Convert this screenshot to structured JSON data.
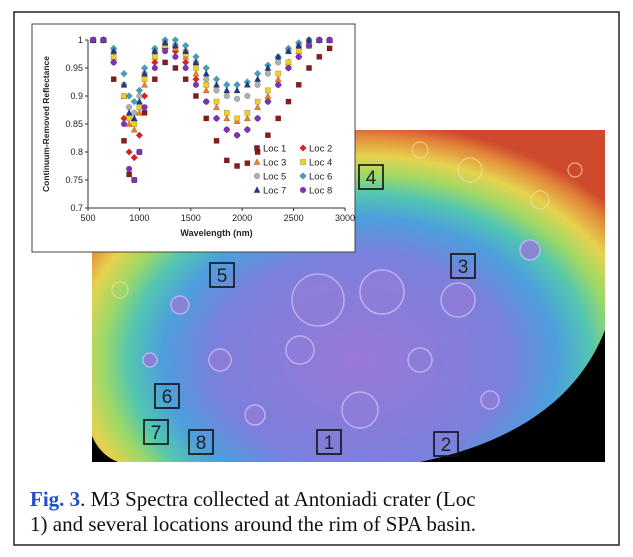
{
  "chart_data": {
    "type": "scatter",
    "xlabel": "Wavelength (nm)",
    "ylabel": "Continuum-Removed Reflectance",
    "xlim": [
      500,
      3000
    ],
    "xticks": [
      500,
      1000,
      1500,
      2000,
      2500,
      3000
    ],
    "ylim": [
      0.7,
      1
    ],
    "yticks": [
      0.7,
      0.75,
      0.8,
      0.85,
      0.9,
      0.95,
      1
    ],
    "legend": "lower right",
    "x": [
      550,
      650,
      750,
      850,
      900,
      950,
      1000,
      1050,
      1150,
      1250,
      1350,
      1450,
      1550,
      1650,
      1750,
      1850,
      1950,
      2050,
      2150,
      2250,
      2350,
      2450,
      2550,
      2650,
      2750,
      2850
    ],
    "series": [
      {
        "name": "Loc 1",
        "color": "#8b1a1a",
        "marker": "square",
        "values": [
          1,
          1,
          0.93,
          0.82,
          0.76,
          0.75,
          0.8,
          0.87,
          0.93,
          0.96,
          0.95,
          0.93,
          0.9,
          0.86,
          0.82,
          0.785,
          0.775,
          0.78,
          0.8,
          0.83,
          0.86,
          0.89,
          0.92,
          0.95,
          0.97,
          0.985
        ]
      },
      {
        "name": "Loc 2",
        "color": "#e02020",
        "marker": "diamond",
        "values": [
          1,
          1,
          0.96,
          0.86,
          0.8,
          0.79,
          0.83,
          0.9,
          0.96,
          0.985,
          0.98,
          0.96,
          0.93,
          0.89,
          0.86,
          0.84,
          0.83,
          0.84,
          0.86,
          0.89,
          0.92,
          0.95,
          0.97,
          0.99,
          1,
          1
        ]
      },
      {
        "name": "Loc 3",
        "color": "#f08020",
        "marker": "triangle",
        "values": [
          1,
          1,
          0.97,
          0.9,
          0.85,
          0.84,
          0.87,
          0.92,
          0.97,
          0.99,
          0.985,
          0.97,
          0.94,
          0.91,
          0.88,
          0.86,
          0.855,
          0.86,
          0.88,
          0.9,
          0.93,
          0.96,
          0.98,
          0.99,
          1,
          1
        ]
      },
      {
        "name": "Loc 4",
        "color": "#f0d020",
        "marker": "square",
        "values": [
          1,
          1,
          0.97,
          0.9,
          0.86,
          0.85,
          0.88,
          0.93,
          0.97,
          0.99,
          0.99,
          0.975,
          0.95,
          0.92,
          0.89,
          0.87,
          0.86,
          0.87,
          0.89,
          0.91,
          0.94,
          0.96,
          0.98,
          0.99,
          1,
          1
        ]
      },
      {
        "name": "Loc 5",
        "color": "#b0b0b0",
        "marker": "circle",
        "values": [
          1,
          1,
          0.98,
          0.92,
          0.88,
          0.87,
          0.9,
          0.94,
          0.98,
          0.995,
          0.99,
          0.98,
          0.96,
          0.93,
          0.91,
          0.9,
          0.895,
          0.9,
          0.92,
          0.94,
          0.96,
          0.98,
          0.99,
          1,
          1,
          1
        ]
      },
      {
        "name": "Loc 6",
        "color": "#40a0c0",
        "marker": "diamond",
        "values": [
          1,
          1,
          0.985,
          0.94,
          0.9,
          0.89,
          0.91,
          0.95,
          0.985,
          1,
          1,
          0.99,
          0.97,
          0.95,
          0.93,
          0.92,
          0.92,
          0.925,
          0.94,
          0.955,
          0.97,
          0.985,
          0.995,
          1,
          1,
          1
        ]
      },
      {
        "name": "Loc 7",
        "color": "#1f3a8a",
        "marker": "triangle",
        "values": [
          1,
          1,
          0.98,
          0.92,
          0.87,
          0.86,
          0.89,
          0.94,
          0.98,
          0.995,
          0.99,
          0.98,
          0.96,
          0.94,
          0.92,
          0.91,
          0.91,
          0.92,
          0.93,
          0.95,
          0.97,
          0.98,
          0.99,
          1,
          1,
          1
        ]
      },
      {
        "name": "Loc 8",
        "color": "#8030c0",
        "marker": "circle",
        "values": [
          1,
          1,
          0.96,
          0.85,
          0.77,
          0.75,
          0.8,
          0.88,
          0.95,
          0.98,
          0.97,
          0.95,
          0.92,
          0.89,
          0.86,
          0.84,
          0.83,
          0.84,
          0.86,
          0.89,
          0.92,
          0.95,
          0.97,
          0.99,
          1,
          1
        ]
      }
    ]
  },
  "map": {
    "labels": [
      "4",
      "5",
      "3",
      "6",
      "7",
      "8",
      "1",
      "2"
    ]
  },
  "caption": {
    "label": "Fig. 3",
    "lines": [
      ". M3 Spectra collected at Antoniadi crater (Loc",
      "1) and several locations around the rim of SPA basin."
    ]
  }
}
